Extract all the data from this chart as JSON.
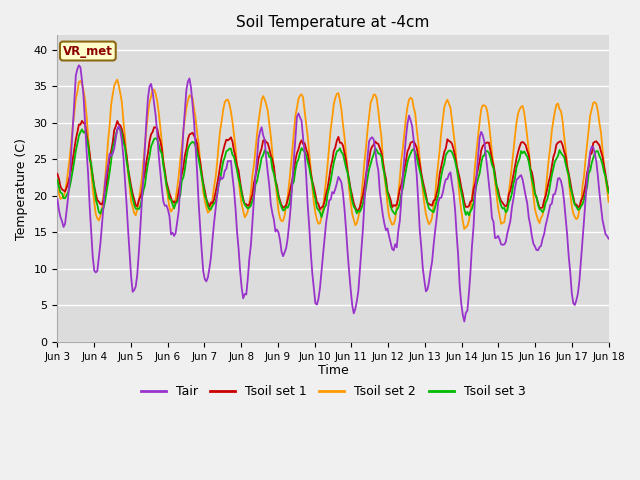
{
  "title": "Soil Temperature at -4cm",
  "xlabel": "Time",
  "ylabel": "Temperature (C)",
  "ylim": [
    0,
    42
  ],
  "yticks": [
    0,
    5,
    10,
    15,
    20,
    25,
    30,
    35,
    40
  ],
  "legend_labels": [
    "Tair",
    "Tsoil set 1",
    "Tsoil set 2",
    "Tsoil set 3"
  ],
  "colors": {
    "Tair": "#9933cc",
    "Tsoil set 1": "#cc0000",
    "Tsoil set 2": "#ff9900",
    "Tsoil set 3": "#00bb00"
  },
  "annotation_text": "VR_met",
  "annotation_color": "#8b0000",
  "annotation_bg": "#ffffcc",
  "bg_color": "#dcdcdc",
  "n_days": 15,
  "start_day": 3,
  "start_month": "Jun"
}
